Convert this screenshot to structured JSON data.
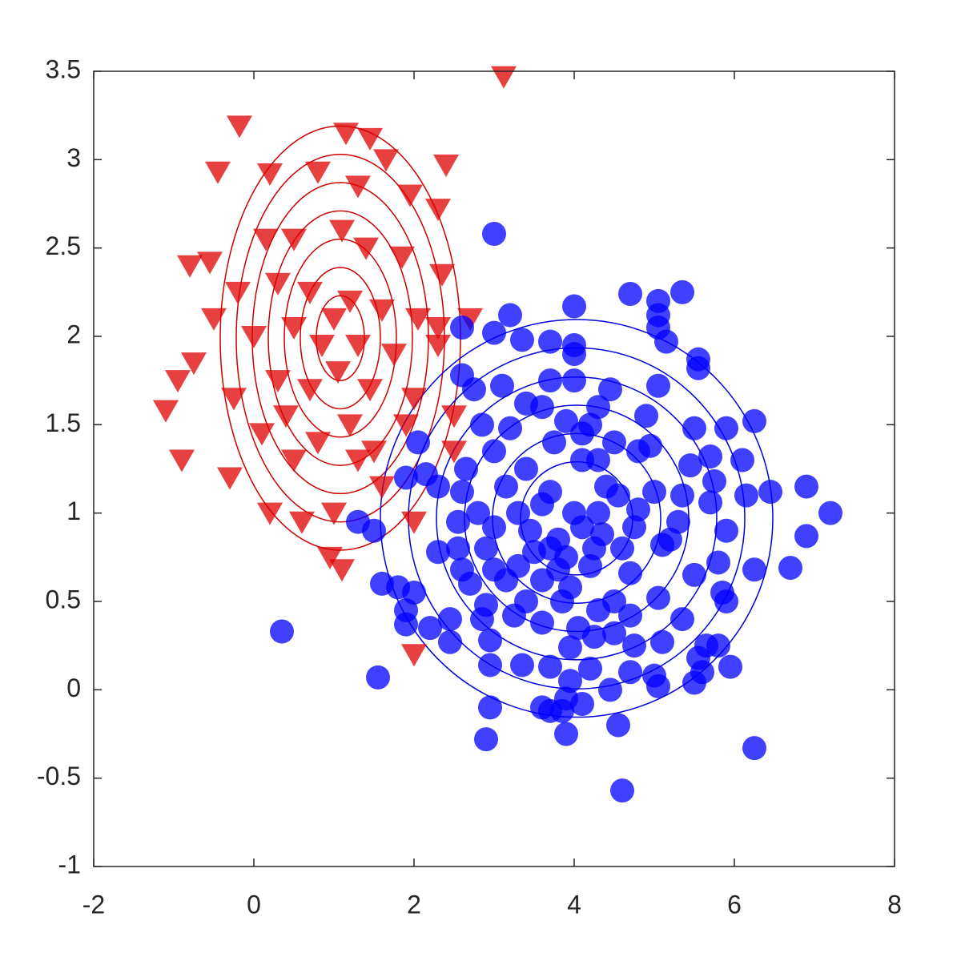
{
  "chart_data": {
    "type": "scatter",
    "xlim": [
      -2,
      8
    ],
    "ylim": [
      -1,
      3.5
    ],
    "xticks": [
      -2,
      0,
      2,
      4,
      6,
      8
    ],
    "yticks": [
      -1,
      -0.5,
      0,
      0.5,
      1,
      1.5,
      2,
      2.5,
      3,
      3.5
    ],
    "series": [
      {
        "marker": "triangle",
        "color": "#dd0000",
        "x": [
          3.12,
          -0.18,
          -0.45,
          1.15,
          1.45,
          1.65,
          2.4,
          0.8,
          0.2,
          1.3,
          1.95,
          2.3,
          -0.55,
          -0.8,
          0.15,
          0.5,
          1.1,
          1.4,
          1.85,
          2.35,
          -0.2,
          0.3,
          0.7,
          1.2,
          1.6,
          2.05,
          -0.5,
          0.0,
          0.5,
          0.85,
          1.0,
          1.3,
          1.75,
          2.3,
          -0.75,
          -0.95,
          -1.1,
          -0.9,
          -0.3,
          0.1,
          0.4,
          0.8,
          1.2,
          1.5,
          1.9,
          -0.25,
          0.3,
          0.7,
          1.05,
          1.45,
          2.0,
          0.2,
          0.6,
          1.0,
          1.6,
          0.95,
          1.1,
          2.0,
          2.0,
          2.5,
          2.5,
          2.7,
          2.3,
          0.5,
          1.3
        ],
        "y": [
          3.47,
          3.19,
          2.93,
          3.15,
          3.12,
          3.0,
          2.97,
          2.93,
          2.92,
          2.85,
          2.8,
          2.72,
          2.42,
          2.4,
          2.55,
          2.55,
          2.6,
          2.5,
          2.45,
          2.35,
          2.25,
          2.3,
          2.25,
          2.2,
          2.15,
          2.1,
          2.1,
          2.0,
          2.05,
          1.95,
          2.1,
          1.95,
          1.9,
          1.95,
          1.85,
          1.75,
          1.58,
          1.3,
          1.2,
          1.45,
          1.55,
          1.4,
          1.5,
          1.35,
          1.5,
          1.65,
          1.75,
          1.7,
          1.8,
          1.7,
          1.65,
          1.0,
          0.95,
          1.0,
          1.15,
          0.75,
          0.68,
          0.95,
          0.2,
          1.55,
          1.35,
          2.1,
          2.05,
          1.3,
          1.3
        ]
      },
      {
        "marker": "circle",
        "color": "#0000ff",
        "x": [
          4.0,
          4.7,
          5.05,
          5.35,
          5.05,
          5.05,
          5.15,
          3.2,
          3.0,
          3.35,
          3.7,
          4.0,
          4.0,
          5.55,
          5.55,
          3.1,
          3.7,
          4.0,
          4.45,
          5.05,
          2.75,
          3.4,
          3.6,
          4.3,
          4.2,
          4.9,
          2.85,
          3.2,
          3.9,
          4.1,
          4.5,
          5.5,
          5.9,
          6.25,
          3.75,
          3.0,
          4.8,
          4.95,
          5.7,
          6.1,
          2.65,
          3.4,
          4.1,
          4.3,
          5.45,
          2.3,
          2.6,
          3.15,
          3.7,
          4.4,
          4.55,
          5.0,
          5.35,
          5.75,
          6.15,
          6.45,
          6.9,
          7.2,
          2.8,
          3.3,
          3.6,
          4.0,
          4.3,
          4.8,
          5.7,
          2.55,
          3.0,
          3.45,
          3.8,
          4.1,
          4.35,
          4.75,
          5.3,
          5.9,
          6.9,
          2.55,
          2.9,
          3.5,
          3.7,
          3.9,
          4.25,
          4.6,
          5.1,
          5.2,
          2.3,
          2.6,
          3.0,
          3.3,
          3.8,
          4.2,
          4.7,
          5.5,
          5.8,
          6.25,
          6.7,
          1.8,
          2.0,
          2.7,
          3.15,
          3.6,
          3.95,
          4.5,
          5.05,
          5.85,
          1.9,
          2.9,
          3.4,
          3.85,
          4.3,
          4.7,
          5.35,
          5.9,
          1.9,
          2.2,
          2.45,
          2.85,
          3.25,
          4.05,
          4.5,
          5.1,
          5.65,
          2.45,
          2.95,
          3.6,
          3.95,
          4.25,
          4.75,
          5.55,
          5.8,
          2.95,
          3.35,
          3.7,
          4.2,
          4.7,
          5.0,
          5.6,
          5.95,
          1.55,
          3.95,
          4.45,
          5.05,
          5.5,
          3.9,
          3.6,
          3.85,
          4.1,
          2.95,
          3.7,
          4.55,
          2.9,
          3.9,
          6.25,
          4.6,
          0.35,
          3.0,
          1.5,
          1.3,
          2.05,
          1.9,
          2.15,
          1.6,
          2.6,
          2.6
        ],
        "y": [
          2.17,
          2.24,
          2.2,
          2.25,
          2.12,
          2.05,
          1.97,
          2.12,
          2.02,
          1.98,
          1.97,
          1.95,
          1.9,
          1.87,
          1.82,
          1.72,
          1.75,
          1.75,
          1.7,
          1.72,
          1.7,
          1.62,
          1.6,
          1.6,
          1.5,
          1.55,
          1.5,
          1.48,
          1.52,
          1.45,
          1.4,
          1.48,
          1.48,
          1.52,
          1.4,
          1.35,
          1.35,
          1.38,
          1.32,
          1.3,
          1.25,
          1.25,
          1.3,
          1.3,
          1.27,
          1.15,
          1.12,
          1.15,
          1.12,
          1.15,
          1.1,
          1.12,
          1.1,
          1.18,
          1.1,
          1.12,
          1.15,
          1.0,
          1.0,
          1.0,
          1.05,
          1.0,
          1.0,
          1.02,
          1.06,
          0.95,
          0.92,
          0.9,
          0.85,
          0.92,
          0.88,
          0.92,
          0.95,
          0.9,
          0.87,
          0.8,
          0.8,
          0.78,
          0.8,
          0.75,
          0.8,
          0.8,
          0.82,
          0.85,
          0.78,
          0.68,
          0.68,
          0.7,
          0.68,
          0.7,
          0.66,
          0.65,
          0.72,
          0.68,
          0.69,
          0.58,
          0.55,
          0.6,
          0.62,
          0.62,
          0.58,
          0.5,
          0.52,
          0.55,
          0.45,
          0.48,
          0.5,
          0.5,
          0.45,
          0.42,
          0.4,
          0.5,
          0.37,
          0.35,
          0.4,
          0.4,
          0.42,
          0.35,
          0.32,
          0.27,
          0.25,
          0.27,
          0.28,
          0.38,
          0.24,
          0.3,
          0.25,
          0.18,
          0.25,
          0.14,
          0.14,
          0.13,
          0.12,
          0.1,
          0.08,
          0.1,
          0.13,
          0.07,
          0.05,
          0.0,
          0.02,
          0.04,
          -0.05,
          -0.1,
          -0.12,
          -0.08,
          -0.1,
          -0.12,
          -0.2,
          -0.28,
          -0.25,
          -0.33,
          -0.57,
          0.33,
          2.58,
          0.9,
          0.95,
          1.4,
          1.2,
          1.22,
          0.6,
          1.78,
          2.05
        ]
      }
    ],
    "contours": [
      {
        "color": "#cc0000",
        "center": [
          1.08,
          1.99
        ],
        "rx": [
          1.5,
          1.3,
          1.1,
          0.9,
          0.7,
          0.5,
          0.3
        ],
        "ry": [
          1.2,
          1.04,
          0.88,
          0.72,
          0.56,
          0.4,
          0.24
        ]
      },
      {
        "color": "#0000dd",
        "center": [
          4.03,
          0.97
        ],
        "rx": [
          2.45,
          2.1,
          1.75,
          1.4,
          1.05,
          0.7
        ],
        "ry": [
          1.125,
          0.965,
          0.8,
          0.64,
          0.48,
          0.32
        ]
      }
    ]
  }
}
